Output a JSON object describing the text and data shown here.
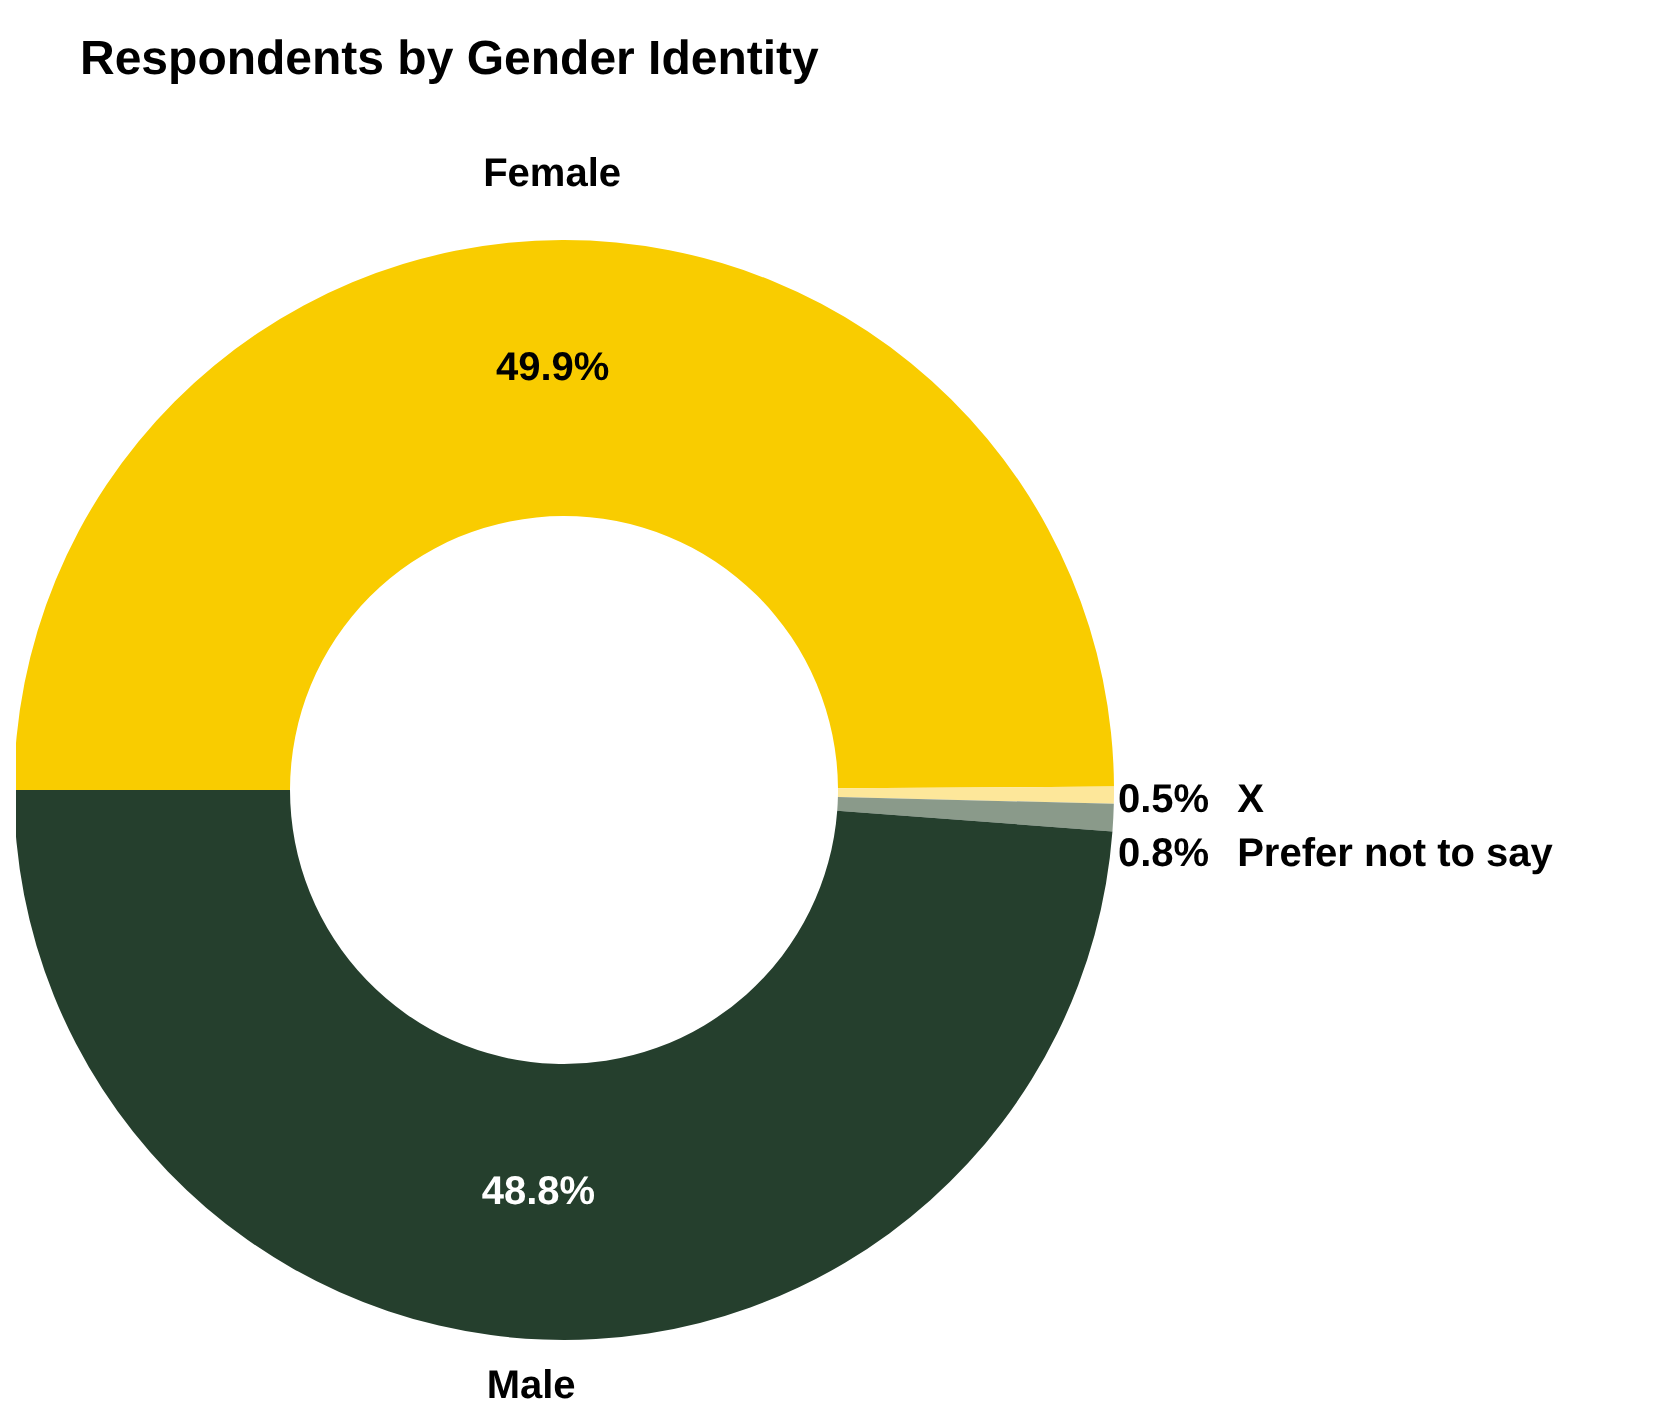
{
  "chart_data": {
    "type": "donut",
    "title": "Respondents by Gender Identity",
    "categories": [
      "Female",
      "X",
      "Prefer not to say",
      "Male"
    ],
    "values": [
      49.9,
      0.5,
      0.8,
      48.8
    ],
    "value_labels": [
      "49.9%",
      "0.5%",
      "0.8%",
      "48.8%"
    ],
    "colors": [
      "#f9cc00",
      "#fde79a",
      "#8a9a8a",
      "#253f2d"
    ],
    "legend": false
  }
}
